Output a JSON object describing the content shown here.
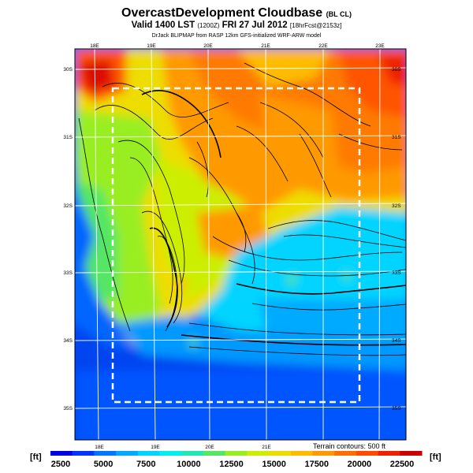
{
  "header": {
    "title": "OvercastDevelopment Cloudbase",
    "title_suffix": "(BL CL)",
    "valid_line": "Valid 1400 LST",
    "valid_code": "(1200Z)",
    "valid_date": "FRI 27 Jul 2012",
    "forecast_tag": "[18hrFcst@2153z]",
    "credit": "DrJack BLIPMAP from RASP 12km GFS-initialized WRF-ARW model"
  },
  "map": {
    "top_lon_labels": [
      "18E",
      "19E",
      "20E",
      "21E",
      "22E",
      "23E"
    ],
    "bottom_lon_labels": [
      "18E",
      "19E",
      "20E",
      "21E"
    ],
    "left_lat_labels": [
      "30S",
      "31S",
      "32S",
      "33S",
      "34S",
      "35S"
    ],
    "right_lat_labels": [
      "30S",
      "31S",
      "32S",
      "33S",
      "34S",
      "35S"
    ],
    "terrain_note": "Terrain contours: 500 ft"
  },
  "legend": {
    "unit_left": "[ft]",
    "unit_right": "[ft]",
    "ticks": [
      "2500",
      "5000",
      "7500",
      "10000",
      "12500",
      "15000",
      "17500",
      "20000",
      "22500"
    ],
    "colors": [
      "#0000e6",
      "#0033ff",
      "#0077ff",
      "#00aaff",
      "#00d4ff",
      "#00eeee",
      "#22e6b4",
      "#55e664",
      "#99ee22",
      "#ccee00",
      "#eedd00",
      "#ffbb00",
      "#ff9900",
      "#ff6e00",
      "#ff4a00",
      "#ee2200",
      "#cc0000"
    ]
  }
}
